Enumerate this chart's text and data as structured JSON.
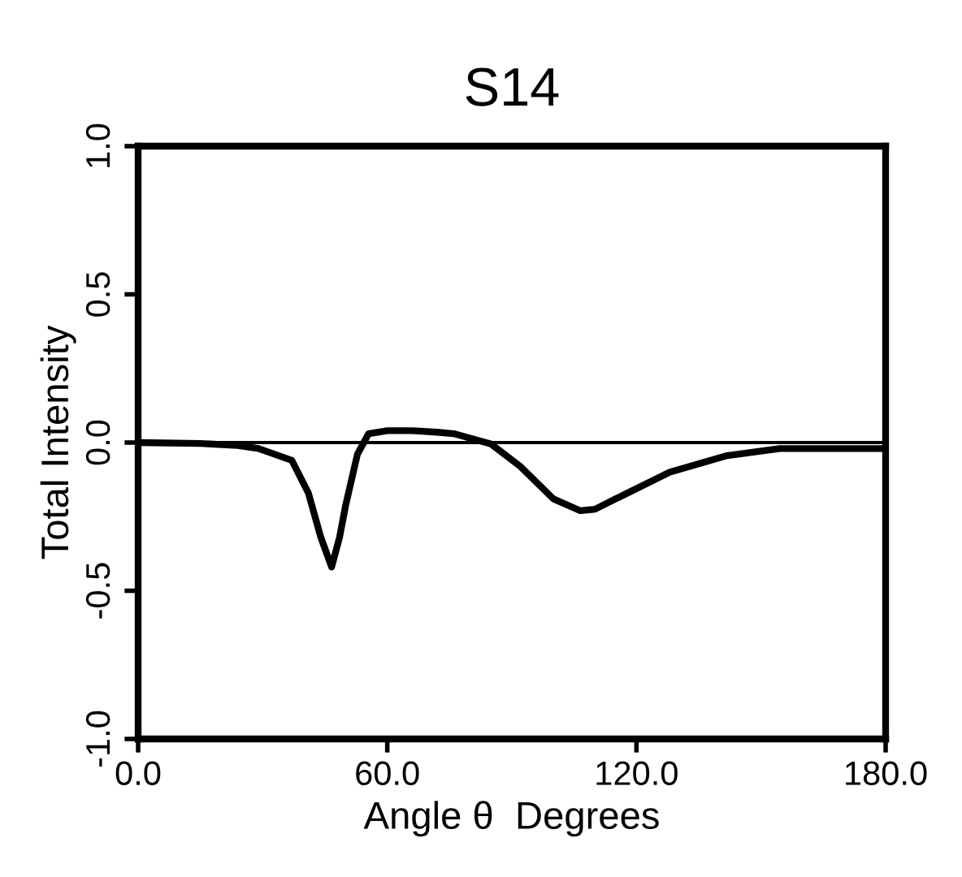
{
  "chart_data": {
    "type": "line",
    "title": "S14",
    "xlabel": "Angle θ  Degrees",
    "ylabel": "Total Intensity",
    "x": [
      0,
      15,
      24,
      29,
      37,
      41,
      44,
      46.6,
      48.5,
      50,
      52.8,
      55.5,
      60,
      66,
      72,
      76,
      85,
      92,
      100,
      106.5,
      110,
      115,
      128,
      141.5,
      154.5,
      165,
      179
    ],
    "values": [
      0,
      -0.003,
      -0.01,
      -0.02,
      -0.06,
      -0.17,
      -0.32,
      -0.42,
      -0.32,
      -0.21,
      -0.04,
      0.03,
      0.04,
      0.04,
      0.035,
      0.03,
      -0.005,
      -0.08,
      -0.19,
      -0.23,
      -0.225,
      -0.19,
      -0.1,
      -0.045,
      -0.02,
      -0.02,
      -0.02
    ],
    "color": "#000000",
    "xlim": [
      0,
      180
    ],
    "ylim": [
      -1,
      1
    ],
    "xticks": [
      {
        "value": 0,
        "label": "0.0"
      },
      {
        "value": 60,
        "label": "60.0"
      },
      {
        "value": 120,
        "label": "120.0"
      },
      {
        "value": 180,
        "label": "180.0"
      }
    ],
    "yticks": [
      {
        "value": -1,
        "label": "-1.0"
      },
      {
        "value": -0.5,
        "label": "-0.5"
      },
      {
        "value": 0,
        "label": "0.0"
      },
      {
        "value": 0.5,
        "label": "0.5"
      },
      {
        "value": 1,
        "label": "1.0"
      }
    ],
    "ref_lines": [
      {
        "axis": "y",
        "value": 0,
        "color": "#000000",
        "line_style": "solid"
      }
    ],
    "grid": false,
    "legend": false,
    "marker": "none",
    "line_style": "solid"
  }
}
